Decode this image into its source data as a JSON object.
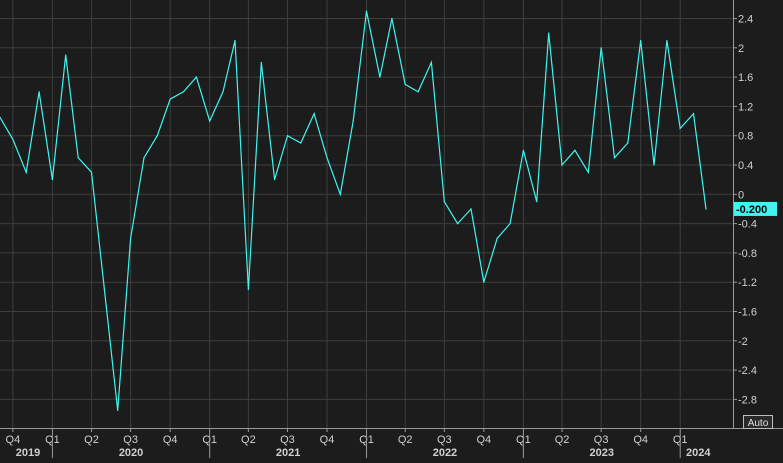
{
  "chart_data": {
    "type": "line",
    "title": "",
    "xlabel": "",
    "ylabel": "",
    "ylim": [
      -3.05,
      2.6
    ],
    "yticks": [
      "2.4",
      "2",
      "1.6",
      "1.2",
      "0.8",
      "0.4",
      "0",
      "-0.4",
      "-0.8",
      "-1.2",
      "-1.6",
      "-2",
      "-2.4",
      "-2.8"
    ],
    "ytick_values": [
      2.4,
      2,
      1.6,
      1.2,
      0.8,
      0.4,
      0,
      -0.4,
      -0.8,
      -1.2,
      -1.6,
      -2,
      -2.4,
      -2.8
    ],
    "last_value_label": "-0.200",
    "auto_label": "Auto",
    "grid": true,
    "line_color": "#3ff5f0",
    "label_bg_color": "#3ff5f0",
    "background_color": "#1b1c1b",
    "axis_background_color": "#262626",
    "x_start": "2019-09-01",
    "x_end": "2024-02-29",
    "quarter_ticks": [
      {
        "label": "Q4",
        "date": "2019-10-01"
      },
      {
        "label": "Q1",
        "date": "2020-01-01"
      },
      {
        "label": "Q2",
        "date": "2020-04-01"
      },
      {
        "label": "Q3",
        "date": "2020-07-01"
      },
      {
        "label": "Q4",
        "date": "2020-10-01"
      },
      {
        "label": "Q1",
        "date": "2021-01-01"
      },
      {
        "label": "Q2",
        "date": "2021-04-01"
      },
      {
        "label": "Q3",
        "date": "2021-07-01"
      },
      {
        "label": "Q4",
        "date": "2021-10-01"
      },
      {
        "label": "Q1",
        "date": "2022-01-01"
      },
      {
        "label": "Q2",
        "date": "2022-04-01"
      },
      {
        "label": "Q3",
        "date": "2022-07-01"
      },
      {
        "label": "Q4",
        "date": "2022-10-01"
      },
      {
        "label": "Q1",
        "date": "2023-01-01"
      },
      {
        "label": "Q2",
        "date": "2023-04-01"
      },
      {
        "label": "Q3",
        "date": "2023-07-01"
      },
      {
        "label": "Q4",
        "date": "2023-10-01"
      },
      {
        "label": "Q1",
        "date": "2024-01-01"
      }
    ],
    "year_ticks": [
      {
        "label": "2019",
        "date": "2019-09-01"
      },
      {
        "label": "2020",
        "date": "2020-01-01"
      },
      {
        "label": "2021",
        "date": "2021-01-01"
      },
      {
        "label": "2022",
        "date": "2022-01-01"
      },
      {
        "label": "2023",
        "date": "2023-01-01"
      },
      {
        "label": "2024",
        "date": "2024-01-01"
      }
    ],
    "series": [
      {
        "points": [
          {
            "date": "2019-09-01",
            "value": 1.05
          },
          {
            "date": "2019-10-01",
            "value": 0.75
          },
          {
            "date": "2019-11-01",
            "value": 0.3
          },
          {
            "date": "2019-12-01",
            "value": 1.4
          },
          {
            "date": "2020-01-01",
            "value": 0.2
          },
          {
            "date": "2020-02-01",
            "value": 1.9
          },
          {
            "date": "2020-03-01",
            "value": 0.5
          },
          {
            "date": "2020-04-01",
            "value": 0.3
          },
          {
            "date": "2020-05-01",
            "value": -1.3
          },
          {
            "date": "2020-06-01",
            "value": -2.95
          },
          {
            "date": "2020-07-01",
            "value": -0.6
          },
          {
            "date": "2020-08-01",
            "value": 0.5
          },
          {
            "date": "2020-09-01",
            "value": 0.8
          },
          {
            "date": "2020-10-01",
            "value": 1.3
          },
          {
            "date": "2020-11-01",
            "value": 1.4
          },
          {
            "date": "2020-12-01",
            "value": 1.6
          },
          {
            "date": "2021-01-01",
            "value": 1.0
          },
          {
            "date": "2021-02-01",
            "value": 1.4
          },
          {
            "date": "2021-03-01",
            "value": 2.1
          },
          {
            "date": "2021-04-01",
            "value": -1.3
          },
          {
            "date": "2021-05-01",
            "value": 1.8
          },
          {
            "date": "2021-06-01",
            "value": 0.2
          },
          {
            "date": "2021-07-01",
            "value": 0.8
          },
          {
            "date": "2021-08-01",
            "value": 0.7
          },
          {
            "date": "2021-09-01",
            "value": 1.1
          },
          {
            "date": "2021-10-01",
            "value": 0.5
          },
          {
            "date": "2021-11-01",
            "value": 0.0
          },
          {
            "date": "2021-12-01",
            "value": 1.0
          },
          {
            "date": "2022-01-01",
            "value": 2.5
          },
          {
            "date": "2022-02-01",
            "value": 1.6
          },
          {
            "date": "2022-03-01",
            "value": 2.4
          },
          {
            "date": "2022-04-01",
            "value": 1.5
          },
          {
            "date": "2022-05-01",
            "value": 1.4
          },
          {
            "date": "2022-06-01",
            "value": 1.8
          },
          {
            "date": "2022-07-01",
            "value": -0.1
          },
          {
            "date": "2022-08-01",
            "value": -0.4
          },
          {
            "date": "2022-09-01",
            "value": -0.2
          },
          {
            "date": "2022-10-01",
            "value": -1.2
          },
          {
            "date": "2022-11-01",
            "value": -0.6
          },
          {
            "date": "2022-12-01",
            "value": -0.4
          },
          {
            "date": "2023-01-01",
            "value": 0.6
          },
          {
            "date": "2023-02-01",
            "value": -0.1
          },
          {
            "date": "2023-03-01",
            "value": 2.2
          },
          {
            "date": "2023-04-01",
            "value": 0.4
          },
          {
            "date": "2023-05-01",
            "value": 0.6
          },
          {
            "date": "2023-06-01",
            "value": 0.3
          },
          {
            "date": "2023-07-01",
            "value": 2.0
          },
          {
            "date": "2023-08-01",
            "value": 0.5
          },
          {
            "date": "2023-09-01",
            "value": 0.7
          },
          {
            "date": "2023-10-01",
            "value": 2.1
          },
          {
            "date": "2023-11-01",
            "value": 0.4
          },
          {
            "date": "2023-12-01",
            "value": 2.1
          },
          {
            "date": "2024-01-01",
            "value": 0.9
          },
          {
            "date": "2024-02-01",
            "value": 1.1
          },
          {
            "date": "2024-03-01",
            "value": -0.2
          }
        ]
      }
    ]
  }
}
